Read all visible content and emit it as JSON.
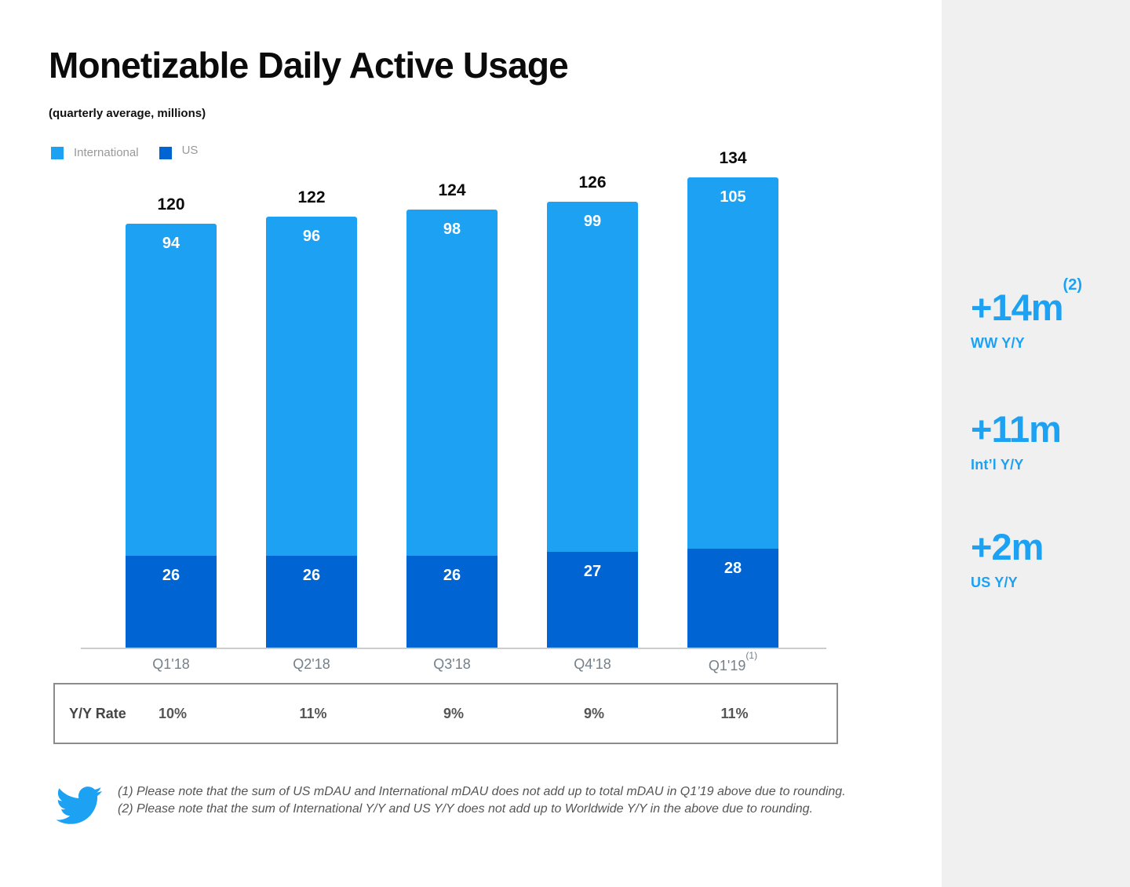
{
  "page": {
    "title": "Monetizable Daily Active Usage",
    "subtitle": "(quarterly average, millions)"
  },
  "colors": {
    "international": "#1DA1F2",
    "us": "#0064D2",
    "accent_blue": "#1DA1F2",
    "sidebar_bg": "#F0F0F0",
    "axis": "#CCCCCC"
  },
  "legend": [
    {
      "label": "International",
      "color": "#1DA1F2"
    },
    {
      "label": "US",
      "color": "#0064D2"
    }
  ],
  "chart_data": {
    "type": "bar",
    "stacked": true,
    "title": "Monetizable Daily Active Usage",
    "subtitle": "(quarterly average, millions)",
    "categories": [
      "Q1'18",
      "Q2'18",
      "Q3'18",
      "Q4'18",
      "Q1'19"
    ],
    "category_superscripts": [
      "",
      "",
      "",
      "",
      "(1)"
    ],
    "series": [
      {
        "name": "US",
        "color": "#0064D2",
        "values": [
          26,
          26,
          26,
          27,
          28
        ]
      },
      {
        "name": "International",
        "color": "#1DA1F2",
        "values": [
          94,
          96,
          98,
          99,
          105
        ]
      }
    ],
    "totals": [
      120,
      122,
      124,
      126,
      134
    ],
    "ylim": [
      0,
      140
    ],
    "grid": false,
    "legend_position": "top-left"
  },
  "yy_table": {
    "row_label": "Y/Y Rate",
    "values": [
      "10%",
      "11%",
      "9%",
      "9%",
      "11%"
    ]
  },
  "stats": [
    {
      "value": "+14m",
      "superscript": "(2)",
      "label": "WW Y/Y"
    },
    {
      "value": "+11m",
      "superscript": "",
      "label": "Int’l Y/Y"
    },
    {
      "value": "+2m",
      "superscript": "",
      "label": "US Y/Y"
    }
  ],
  "footnotes": [
    "(1) Please note that the sum of US mDAU and International mDAU does not add up to total mDAU in Q1’19 above due to rounding.",
    "(2) Please note that the sum of International Y/Y and US Y/Y does not add up to Worldwide Y/Y in the above due to rounding."
  ],
  "icons": {
    "logo": "twitter-bird-icon"
  }
}
